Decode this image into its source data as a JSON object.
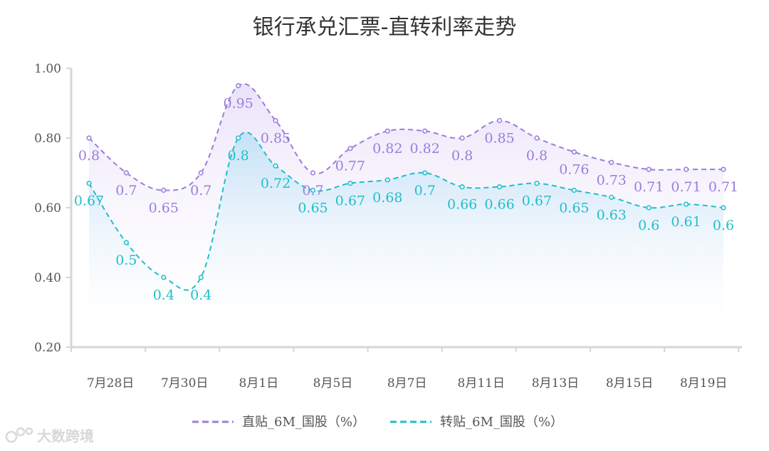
{
  "watermark": {
    "text": "大数跨境",
    "icon": "brand-logo-icon"
  },
  "colors": {
    "series1": "#9b7ddb",
    "series2": "#1fbfcb",
    "axis": "#d6d6d6",
    "text": "#555555"
  },
  "chart_data": {
    "type": "line",
    "title": "银行承兑汇票-直转利率走势",
    "xlabel": "",
    "ylabel": "",
    "ylim": [
      0.2,
      1.0
    ],
    "yticks": [
      "0.20",
      "0.40",
      "0.60",
      "0.80",
      "1.00"
    ],
    "xtick_labels": [
      "7月28日",
      "7月30日",
      "8月1日",
      "8月5日",
      "8月7日",
      "8月11日",
      "8月13日",
      "8月15日",
      "8月19日"
    ],
    "grid": false,
    "legend_position": "bottom",
    "series": [
      {
        "name": "直贴_6M_国股（%）",
        "style": "dashed",
        "smooth": true,
        "values": [
          0.8,
          0.7,
          0.65,
          0.7,
          0.95,
          0.85,
          0.7,
          0.77,
          0.82,
          0.82,
          0.8,
          0.85,
          0.8,
          0.76,
          0.73,
          0.71,
          0.71,
          0.71
        ]
      },
      {
        "name": "转贴_6M_国股（%）",
        "style": "dashed",
        "smooth": true,
        "values": [
          0.67,
          0.5,
          0.4,
          0.4,
          0.8,
          0.72,
          0.65,
          0.67,
          0.68,
          0.7,
          0.66,
          0.66,
          0.67,
          0.65,
          0.63,
          0.6,
          0.61,
          0.6
        ]
      }
    ]
  }
}
